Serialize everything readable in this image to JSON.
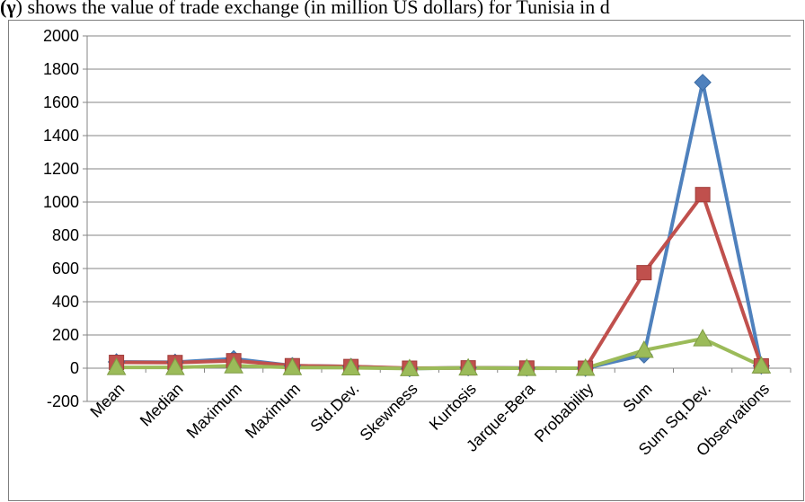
{
  "caption": {
    "prefix": "(",
    "symbol": "γ",
    "text": ") shows the value of trade exchange (in million US dollars) for Tunisia in d"
  },
  "chart_data": {
    "type": "line",
    "title": "",
    "xlabel": "",
    "ylabel": "",
    "ylim": [
      -200,
      2000
    ],
    "yticks": [
      -200,
      0,
      200,
      400,
      600,
      800,
      1000,
      1200,
      1400,
      1600,
      1800,
      2000
    ],
    "categories": [
      "Mean",
      "Median",
      "Maximum",
      "Maximum",
      "Std.Dev.",
      "Skewness",
      "Kurtosis",
      "Jarque-Bera",
      "Probability",
      "Sum",
      "Sum Sq.Dev.",
      "Observations"
    ],
    "grid": "horizontal",
    "legend": "none",
    "series": [
      {
        "color": "#4f81bd",
        "marker": "diamond",
        "values": [
          38,
          36,
          57,
          15,
          10,
          -2,
          3,
          1,
          0,
          80,
          1720,
          14
        ]
      },
      {
        "color": "#c0504d",
        "marker": "square",
        "values": [
          35,
          34,
          45,
          15,
          10,
          0,
          2,
          1,
          0,
          575,
          1045,
          14
        ]
      },
      {
        "color": "#9bbb59",
        "marker": "triangle",
        "values": [
          5,
          5,
          15,
          4,
          3,
          -2,
          2,
          -1,
          0,
          108,
          178,
          14
        ]
      }
    ]
  }
}
